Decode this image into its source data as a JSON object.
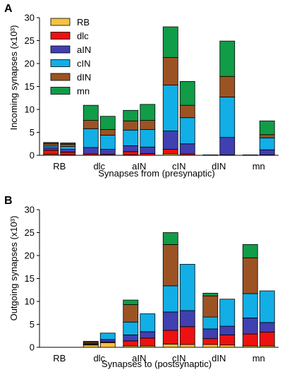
{
  "chart_data": [
    {
      "type": "bar",
      "panel_label": "A",
      "ylabel": "Incoming synapses (x10³)",
      "xlabel": "Synapses from (presynaptic)",
      "ylim": [
        0,
        30
      ],
      "yticks": [
        "0",
        "5",
        "10",
        "15",
        "20",
        "25",
        "30"
      ],
      "categories": [
        "RB",
        "dlc",
        "aIN",
        "cIN",
        "dIN",
        "mn"
      ],
      "stack_order": [
        "RB",
        "dlc",
        "aIN",
        "cIN",
        "dIN",
        "mn"
      ],
      "bars": [
        {
          "category": "RB",
          "segments": [
            0.2,
            0.9,
            0.5,
            0.4,
            0.5,
            0.3
          ]
        },
        {
          "category": "RB",
          "segments": [
            0.1,
            0.6,
            0.6,
            0.6,
            0.5,
            0.3
          ]
        },
        {
          "category": "dlc",
          "segments": [
            0,
            0.3,
            1.4,
            4.1,
            1.8,
            3.3
          ]
        },
        {
          "category": "dlc",
          "segments": [
            0,
            0.2,
            1.1,
            3.1,
            1.2,
            2.9
          ]
        },
        {
          "category": "aIN",
          "segments": [
            0.1,
            0.7,
            1.3,
            3.4,
            2.0,
            2.3
          ]
        },
        {
          "category": "aIN",
          "segments": [
            0,
            0.4,
            1.4,
            3.8,
            2.0,
            3.5
          ]
        },
        {
          "category": "cIN",
          "segments": [
            0.3,
            1.0,
            4.0,
            10.0,
            6.0,
            6.7
          ]
        },
        {
          "category": "cIN",
          "segments": [
            0,
            0.3,
            2.2,
            5.7,
            2.7,
            5.2
          ]
        },
        {
          "category": "dIN",
          "segments": [
            0,
            0,
            0.1,
            0,
            0,
            0
          ]
        },
        {
          "category": "dIN",
          "segments": [
            0,
            0.1,
            3.8,
            8.8,
            4.5,
            7.7
          ]
        },
        {
          "category": "mn",
          "segments": [
            0,
            0,
            0.1,
            0,
            0,
            0
          ]
        },
        {
          "category": "mn",
          "segments": [
            0,
            0.1,
            1.1,
            2.6,
            0.7,
            3.0
          ]
        }
      ]
    },
    {
      "type": "bar",
      "panel_label": "B",
      "ylabel": "Outgoing synapses (x10³)",
      "xlabel": "Synapses to (postsynaptic)",
      "ylim": [
        0,
        30
      ],
      "yticks": [
        "0",
        "5",
        "10",
        "15",
        "20",
        "25",
        "30"
      ],
      "categories": [
        "RB",
        "dlc",
        "aIN",
        "cIN",
        "dIN",
        "mn"
      ],
      "stack_order": [
        "RB",
        "dlc",
        "aIN",
        "cIN",
        "dIN",
        "mn"
      ],
      "bars": [
        {
          "category": "RB",
          "segments": [
            0,
            0,
            0,
            0,
            0,
            0
          ]
        },
        {
          "category": "RB",
          "segments": [
            0,
            0,
            0,
            0,
            0,
            0
          ]
        },
        {
          "category": "dlc",
          "segments": [
            0.5,
            0.1,
            0.1,
            0.1,
            0.3,
            0.2
          ]
        },
        {
          "category": "dlc",
          "segments": [
            1.0,
            0.2,
            0.5,
            1.4,
            0,
            0
          ]
        },
        {
          "category": "aIN",
          "segments": [
            0.3,
            1.1,
            1.3,
            2.8,
            3.8,
            1.0
          ]
        },
        {
          "category": "aIN",
          "segments": [
            0.3,
            1.7,
            1.4,
            3.9,
            0,
            0
          ]
        },
        {
          "category": "cIN",
          "segments": [
            0.7,
            3.0,
            4.0,
            5.7,
            9.0,
            2.6
          ]
        },
        {
          "category": "cIN",
          "segments": [
            0.6,
            3.9,
            3.5,
            10.1,
            0,
            0
          ]
        },
        {
          "category": "dIN",
          "segments": [
            0.6,
            1.3,
            2.1,
            2.6,
            4.6,
            0.6
          ]
        },
        {
          "category": "dIN",
          "segments": [
            0.5,
            2.2,
            1.9,
            5.9,
            0,
            0
          ]
        },
        {
          "category": "mn",
          "segments": [
            0.3,
            2.6,
            3.5,
            5.3,
            7.8,
            2.9
          ]
        },
        {
          "category": "mn",
          "segments": [
            0.3,
            3.0,
            2.1,
            6.9,
            0,
            0
          ]
        }
      ]
    }
  ],
  "legend": [
    "RB",
    "dlc",
    "aIN",
    "cIN",
    "dIN",
    "mn"
  ],
  "colors": {
    "RB": "#f5c342",
    "dlc": "#ee1111",
    "aIN": "#4040b0",
    "cIN": "#12aee6",
    "dIN": "#9c5323",
    "mn": "#119c48",
    "dark_top": "#4a4a4a"
  }
}
